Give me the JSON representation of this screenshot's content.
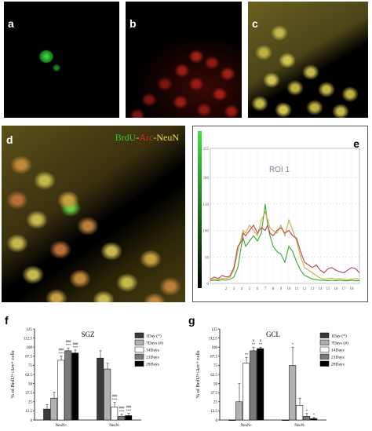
{
  "panels": {
    "a": {
      "label": "a"
    },
    "b": {
      "label": "b"
    },
    "c": {
      "label": "c"
    },
    "d": {
      "label": "d",
      "stain": {
        "brdu": "BrdU",
        "sep1": "-",
        "arc": "Arc",
        "sep2": "-",
        "neun": "NeuN"
      }
    },
    "e": {
      "label": "e",
      "roi": "ROI 1"
    },
    "f": {
      "label": "f"
    },
    "g": {
      "label": "g"
    }
  },
  "colors": {
    "brdu": "#33cc33",
    "arc": "#e03020",
    "neun": "#e8e040",
    "day1": "#3a3a3a",
    "day7": "#b0b0b0",
    "day14": "#ffffff",
    "day21": "#7a7a7a",
    "day28": "#000000"
  },
  "chart_data": [
    {
      "panel": "e",
      "type": "line",
      "title": "ROI 1",
      "ylim": [
        0,
        255
      ],
      "xlim": [
        0,
        19
      ],
      "x_ticks": [
        "2",
        "3",
        "4",
        "5",
        "6",
        "7",
        "8",
        "9",
        "10",
        "11",
        "12",
        "13",
        "14",
        "15",
        "16",
        "17",
        "18"
      ],
      "y_ticks": [
        "0",
        "50",
        "100",
        "150",
        "200",
        "255"
      ],
      "x": [
        0,
        0.5,
        1,
        1.5,
        2,
        2.5,
        3,
        3.5,
        4,
        4.2,
        4.5,
        5,
        5.5,
        6,
        6.5,
        7,
        7.3,
        7.6,
        8,
        8.5,
        9,
        9.5,
        10,
        10.5,
        11,
        11.5,
        12,
        12.5,
        13,
        13.5,
        14,
        14.5,
        15,
        15.5,
        16,
        16.5,
        17,
        17.5,
        18,
        18.5,
        19
      ],
      "series": [
        {
          "color": "#33aa33",
          "values": [
            5,
            6,
            5,
            7,
            6,
            8,
            12,
            30,
            75,
            85,
            70,
            80,
            90,
            80,
            95,
            150,
            110,
            90,
            70,
            60,
            55,
            40,
            70,
            60,
            40,
            25,
            15,
            12,
            8,
            7,
            6,
            6,
            5,
            6,
            5,
            6,
            5,
            5,
            6,
            5,
            5
          ]
        },
        {
          "color": "#c8b040",
          "values": [
            6,
            8,
            7,
            10,
            9,
            12,
            25,
            60,
            90,
            100,
            95,
            110,
            100,
            90,
            120,
            135,
            120,
            105,
            100,
            95,
            110,
            90,
            120,
            100,
            80,
            50,
            30,
            25,
            20,
            15,
            10,
            8,
            9,
            10,
            8,
            9,
            8,
            7,
            8,
            9,
            8
          ]
        },
        {
          "color": "#c04050",
          "values": [
            8,
            12,
            9,
            15,
            12,
            14,
            30,
            70,
            80,
            95,
            90,
            100,
            110,
            95,
            105,
            100,
            110,
            95,
            90,
            100,
            105,
            95,
            100,
            90,
            85,
            60,
            40,
            35,
            30,
            35,
            25,
            20,
            28,
            30,
            25,
            22,
            20,
            25,
            30,
            28,
            20
          ]
        }
      ]
    },
    {
      "panel": "f",
      "type": "bar",
      "title": "SGZ",
      "ylabel": "% of BrdU+/Arc+ cells",
      "categories": [
        "NeuN+",
        "NeuN-"
      ],
      "ylim": [
        0,
        125
      ],
      "y_ticks": [
        "0",
        "12.5",
        "25",
        "37.5",
        "50",
        "62.5",
        "75",
        "87.5",
        "100",
        "112.5",
        "125"
      ],
      "legend": [
        "1Day (*)",
        "7Days (#)",
        "14Days",
        "21Days",
        "28Days"
      ],
      "series": [
        {
          "name": "1Day (*)",
          "values": [
            15,
            85
          ],
          "errors": [
            6,
            10
          ],
          "annotations": [
            "",
            ""
          ]
        },
        {
          "name": "7Days (#)",
          "values": [
            30,
            70
          ],
          "errors": [
            8,
            8
          ],
          "annotations": [
            "",
            ""
          ]
        },
        {
          "name": "14Days",
          "values": [
            82,
            18
          ],
          "errors": [
            6,
            6
          ],
          "annotations": [
            "###\n***",
            "###\n***"
          ]
        },
        {
          "name": "21Days",
          "values": [
            95,
            5
          ],
          "errors": [
            4,
            3
          ],
          "annotations": [
            "###\n***",
            "###\n***"
          ]
        },
        {
          "name": "28Days",
          "values": [
            92,
            6
          ],
          "errors": [
            4,
            3
          ],
          "annotations": [
            "###\n***",
            "###\n***"
          ]
        }
      ]
    },
    {
      "panel": "g",
      "type": "bar",
      "title": "GCL",
      "ylabel": "% of BrdU+/Arc+ cells",
      "categories": [
        "NeuN+",
        "NeuN-"
      ],
      "ylim": [
        0,
        125
      ],
      "y_ticks": [
        "0",
        "12.5",
        "25",
        "37.5",
        "50",
        "62.5",
        "75",
        "87.5",
        "100",
        "112.5",
        "125"
      ],
      "legend": [
        "1Day (*)",
        "7Days (#)",
        "14Days",
        "21Days",
        "28Days"
      ],
      "series": [
        {
          "name": "1Day (*)",
          "values": [
            0,
            0
          ],
          "errors": [
            0,
            0
          ],
          "annotations": [
            "",
            ""
          ]
        },
        {
          "name": "7Days (#)",
          "values": [
            25,
            75
          ],
          "errors": [
            25,
            25
          ],
          "annotations": [
            "",
            "*"
          ]
        },
        {
          "name": "14Days",
          "values": [
            78,
            20
          ],
          "errors": [
            8,
            10
          ],
          "annotations": [
            "**",
            ""
          ]
        },
        {
          "name": "21Days",
          "values": [
            95,
            5
          ],
          "errors": [
            5,
            4
          ],
          "annotations": [
            "#\n**",
            "*"
          ]
        },
        {
          "name": "28Days",
          "values": [
            98,
            2
          ],
          "errors": [
            2,
            2
          ],
          "annotations": [
            "#\n**",
            "*"
          ]
        }
      ]
    }
  ]
}
